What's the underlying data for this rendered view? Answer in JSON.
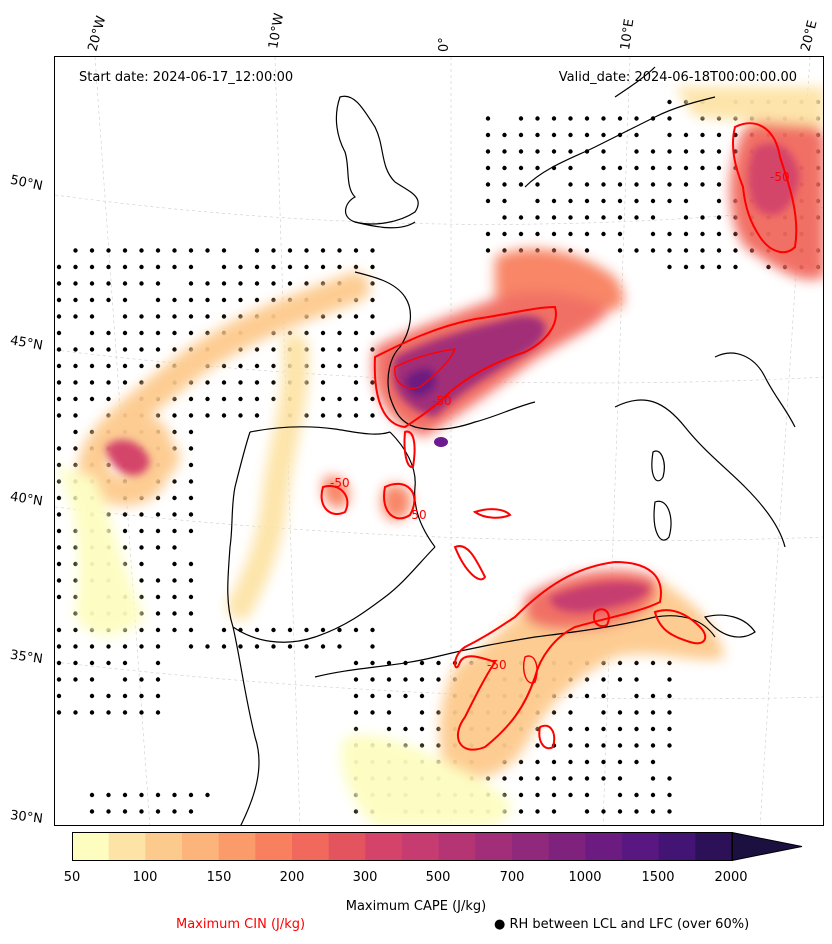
{
  "map": {
    "start_date": "Start date: 2024-06-17_12:00:00",
    "valid_date": "Valid_date: 2024-06-18T00:00:00.00",
    "lon_labels": [
      "20°W",
      "10°W",
      "0°",
      "10°E",
      "20°E"
    ],
    "lat_labels": [
      "50°N",
      "45°N",
      "40°N",
      "35°N",
      "30°N"
    ],
    "cin_contour_label": "-50",
    "colors": {
      "cin_contour": "#ff0000",
      "coast": "#000000",
      "rh_dots": "#000000",
      "purple_blob": "#6b1a8f"
    }
  },
  "colorbar": {
    "title": "Maximum CAPE (J/kg)",
    "tick_labels": [
      "50",
      "100",
      "150",
      "200",
      "300",
      "500",
      "700",
      "1000",
      "1500",
      "2000"
    ],
    "colors": [
      "#fdfdc0",
      "#fde3a6",
      "#fdca8d",
      "#fdb47a",
      "#fb9b6a",
      "#f8805f",
      "#f1695d",
      "#e3545f",
      "#d4446a",
      "#c63c70",
      "#b43474",
      "#a22d78",
      "#90287c",
      "#7e227e",
      "#6c1c80",
      "#591881",
      "#431473",
      "#2d1158",
      "#1c1040"
    ]
  },
  "legend": {
    "cin_label": "Maximum CIN (J/kg)",
    "rh_label": "● RH between LCL and LFC (over 60%)",
    "cin_color": "#ff0000"
  }
}
